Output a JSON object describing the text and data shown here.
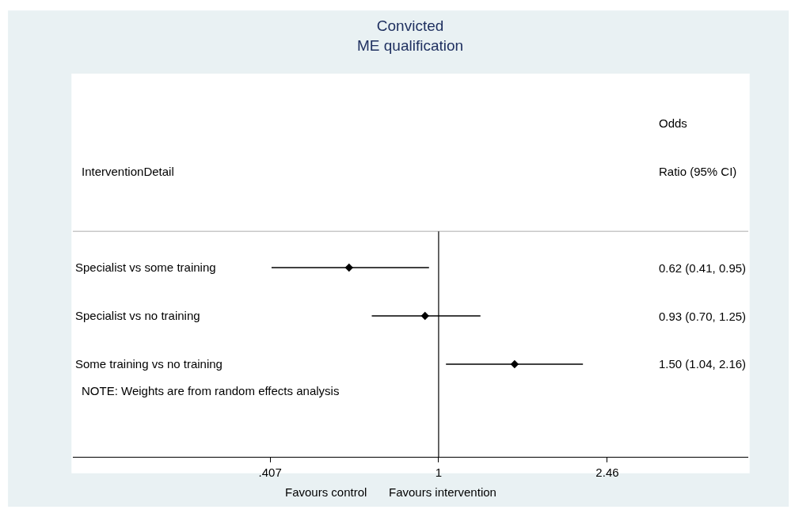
{
  "chart_data": {
    "type": "scatter",
    "title": "Convicted\nME qualification",
    "orientation": "horizontal",
    "categories": [
      "Specialist vs some training",
      "Specialist vs no training",
      "Some training vs no training"
    ],
    "series": [
      {
        "color": "#000000",
        "values": [
          0.62,
          0.93,
          1.5
        ],
        "errors": [
          [
            0.41,
            0.95
          ],
          [
            0.7,
            1.25
          ],
          [
            1.04,
            2.16
          ]
        ]
      }
    ],
    "xlim": [
      0.142,
      5.22
    ],
    "xticks": [
      {
        "value": 0.407,
        "label": ".407"
      },
      1,
      2.46
    ],
    "log": "x",
    "grid": false,
    "marker": "diamond",
    "ref_lines": [
      {
        "axis": "x",
        "value": 1,
        "color": "#000000"
      }
    ],
    "annotations": [
      "InterventionDetail",
      "Odds\nRatio (95% CI)",
      "0.62 (0.41, 0.95)",
      "0.93 (0.70, 1.25)",
      "1.50 (1.04, 2.16)",
      "NOTE: Weights are from random effects analysis",
      "Favours control",
      "Favours intervention"
    ]
  }
}
